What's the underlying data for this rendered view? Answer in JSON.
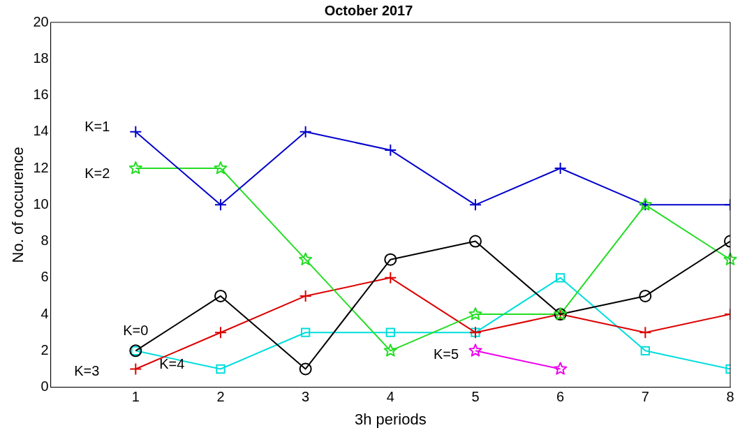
{
  "chart_data": {
    "type": "line",
    "title": "October 2017",
    "xlabel": "3h periods",
    "ylabel": "No. of occurence",
    "x": [
      1,
      2,
      3,
      4,
      5,
      6,
      7,
      8
    ],
    "xlim": [
      0,
      8
    ],
    "xticks": [
      1,
      2,
      3,
      4,
      5,
      6,
      7,
      8
    ],
    "ylim": [
      0,
      20
    ],
    "yticks": [
      0,
      2,
      4,
      6,
      8,
      10,
      12,
      14,
      16,
      18,
      20
    ],
    "legend": false,
    "grid": false,
    "line_style": "solid",
    "series": [
      {
        "name": "K=0",
        "color": "#000000",
        "marker": "circle",
        "values": [
          2,
          5,
          1,
          7,
          8,
          4,
          5,
          8
        ]
      },
      {
        "name": "K=1",
        "color": "#0000cc",
        "marker": "cross",
        "values": [
          14,
          10,
          14,
          13,
          10,
          12,
          10,
          10
        ]
      },
      {
        "name": "K=2",
        "color": "#22dd22",
        "marker": "star",
        "values": [
          12,
          12,
          7,
          2,
          4,
          4,
          10,
          7
        ]
      },
      {
        "name": "K=3",
        "color": "#dd0000",
        "marker": "cross",
        "values": [
          1,
          3,
          5,
          6,
          3,
          4,
          3,
          4
        ]
      },
      {
        "name": "K=4",
        "color": "#00dddd",
        "marker": "square",
        "values": [
          2,
          1,
          3,
          3,
          3,
          6,
          2,
          1
        ]
      },
      {
        "name": "K=5",
        "color": "#ee00ee",
        "marker": "star",
        "x": [
          5,
          6
        ],
        "values": [
          2,
          1
        ]
      }
    ]
  }
}
